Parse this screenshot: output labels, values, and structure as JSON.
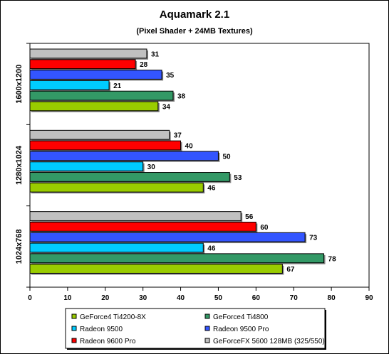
{
  "chart_data": {
    "type": "bar",
    "orientation": "horizontal",
    "title": "Aquamark 2.1",
    "subtitle": "(Pixel Shader + 24MB Textures)",
    "xlim": [
      0,
      90
    ],
    "xticks": [
      "0",
      "10",
      "20",
      "30",
      "40",
      "50",
      "60",
      "70",
      "80",
      "90"
    ],
    "categories": [
      "1600x1200",
      "1280x1024",
      "1024x768"
    ],
    "series": [
      {
        "name": "GeForceFX 5600 128MB (325/550)",
        "color": "#c0c0c0",
        "values": [
          31,
          37,
          56
        ]
      },
      {
        "name": "Radeon 9600 Pro",
        "color": "#ff0000",
        "values": [
          28,
          40,
          60
        ]
      },
      {
        "name": "Radeon 9500 Pro",
        "color": "#3355ff",
        "values": [
          35,
          50,
          73
        ]
      },
      {
        "name": "Radeon 9500",
        "color": "#00ccff",
        "values": [
          21,
          30,
          46
        ]
      },
      {
        "name": "GeForce4 Ti4800",
        "color": "#339966",
        "values": [
          38,
          53,
          78
        ]
      },
      {
        "name": "GeForce4 Ti4200-8X",
        "color": "#99cc00",
        "values": [
          34,
          46,
          67
        ]
      }
    ],
    "legend": {
      "position": "bottom",
      "columns": 2,
      "order": [
        "GeForce4 Ti4200-8X",
        "GeForce4 Ti4800",
        "Radeon 9500",
        "Radeon 9500 Pro",
        "Radeon 9600 Pro",
        "GeForceFX 5600 128MB (325/550)"
      ]
    },
    "grid": false,
    "background": "#ffffff"
  }
}
